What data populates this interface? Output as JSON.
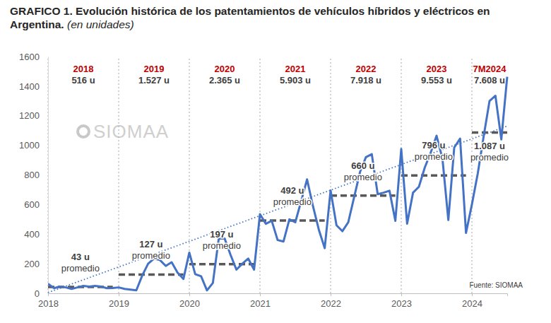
{
  "chart_data": {
    "type": "line",
    "title": "GRAFICO 1. Evolución histórica de los patentamientos de vehículos híbridos y eléctricos en Argentina.",
    "subtitle": "(en unidades)",
    "categories": [
      "2018",
      null,
      null,
      null,
      null,
      null,
      null,
      null,
      null,
      null,
      null,
      null,
      "2019",
      null,
      null,
      null,
      null,
      null,
      null,
      null,
      null,
      null,
      null,
      null,
      "2020",
      null,
      null,
      null,
      null,
      null,
      null,
      null,
      null,
      null,
      null,
      null,
      "2021",
      null,
      null,
      null,
      null,
      null,
      null,
      null,
      null,
      null,
      null,
      null,
      "2022",
      null,
      null,
      null,
      null,
      null,
      null,
      null,
      null,
      null,
      null,
      null,
      "2023",
      null,
      null,
      null,
      null,
      null,
      null,
      null,
      null,
      null,
      null,
      null,
      "2024",
      null,
      null,
      null,
      null,
      null,
      null
    ],
    "values": [
      65,
      35,
      45,
      40,
      30,
      40,
      50,
      45,
      50,
      45,
      35,
      36,
      40,
      30,
      25,
      20,
      120,
      200,
      235,
      225,
      185,
      210,
      140,
      97,
      275,
      130,
      115,
      20,
      70,
      370,
      370,
      260,
      160,
      200,
      235,
      160,
      535,
      470,
      490,
      360,
      350,
      500,
      480,
      623,
      770,
      590,
      430,
      305,
      695,
      460,
      420,
      480,
      650,
      820,
      920,
      940,
      670,
      680,
      693,
      490,
      975,
      470,
      680,
      720,
      850,
      950,
      1065,
      910,
      495,
      985,
      1045,
      408,
      600,
      810,
      1060,
      1300,
      1335,
      1040,
      1463
    ],
    "color": "#4472c4",
    "ylim": [
      0,
      1600
    ],
    "yticks": [
      0,
      200,
      400,
      600,
      800,
      1000,
      1200,
      1400,
      1600
    ],
    "grid": "x",
    "trend": {
      "values": [
        5,
        1130
      ],
      "line_style": "dotted"
    },
    "average_note": "promedio",
    "year_summaries": [
      {
        "year": "2018",
        "total": "516 u",
        "average": 43,
        "average_label": "43 u"
      },
      {
        "year": "2019",
        "total": "1.527 u",
        "average": 127,
        "average_label": "127 u"
      },
      {
        "year": "2020",
        "total": "2.365 u",
        "average": 197,
        "average_label": "197 u"
      },
      {
        "year": "2021",
        "total": "5.903 u",
        "average": 492,
        "average_label": "492 u"
      },
      {
        "year": "2022",
        "total": "7.918 u",
        "average": 660,
        "average_label": "660 u"
      },
      {
        "year": "2023",
        "total": "9.553 u",
        "average": 796,
        "average_label": "796 u"
      },
      {
        "year": "7M2024",
        "total": "7.608 u",
        "average": 1087,
        "average_label": "1.087 u"
      }
    ],
    "watermark": "SIOMAA",
    "source": "Fuente: SIOMAA"
  }
}
